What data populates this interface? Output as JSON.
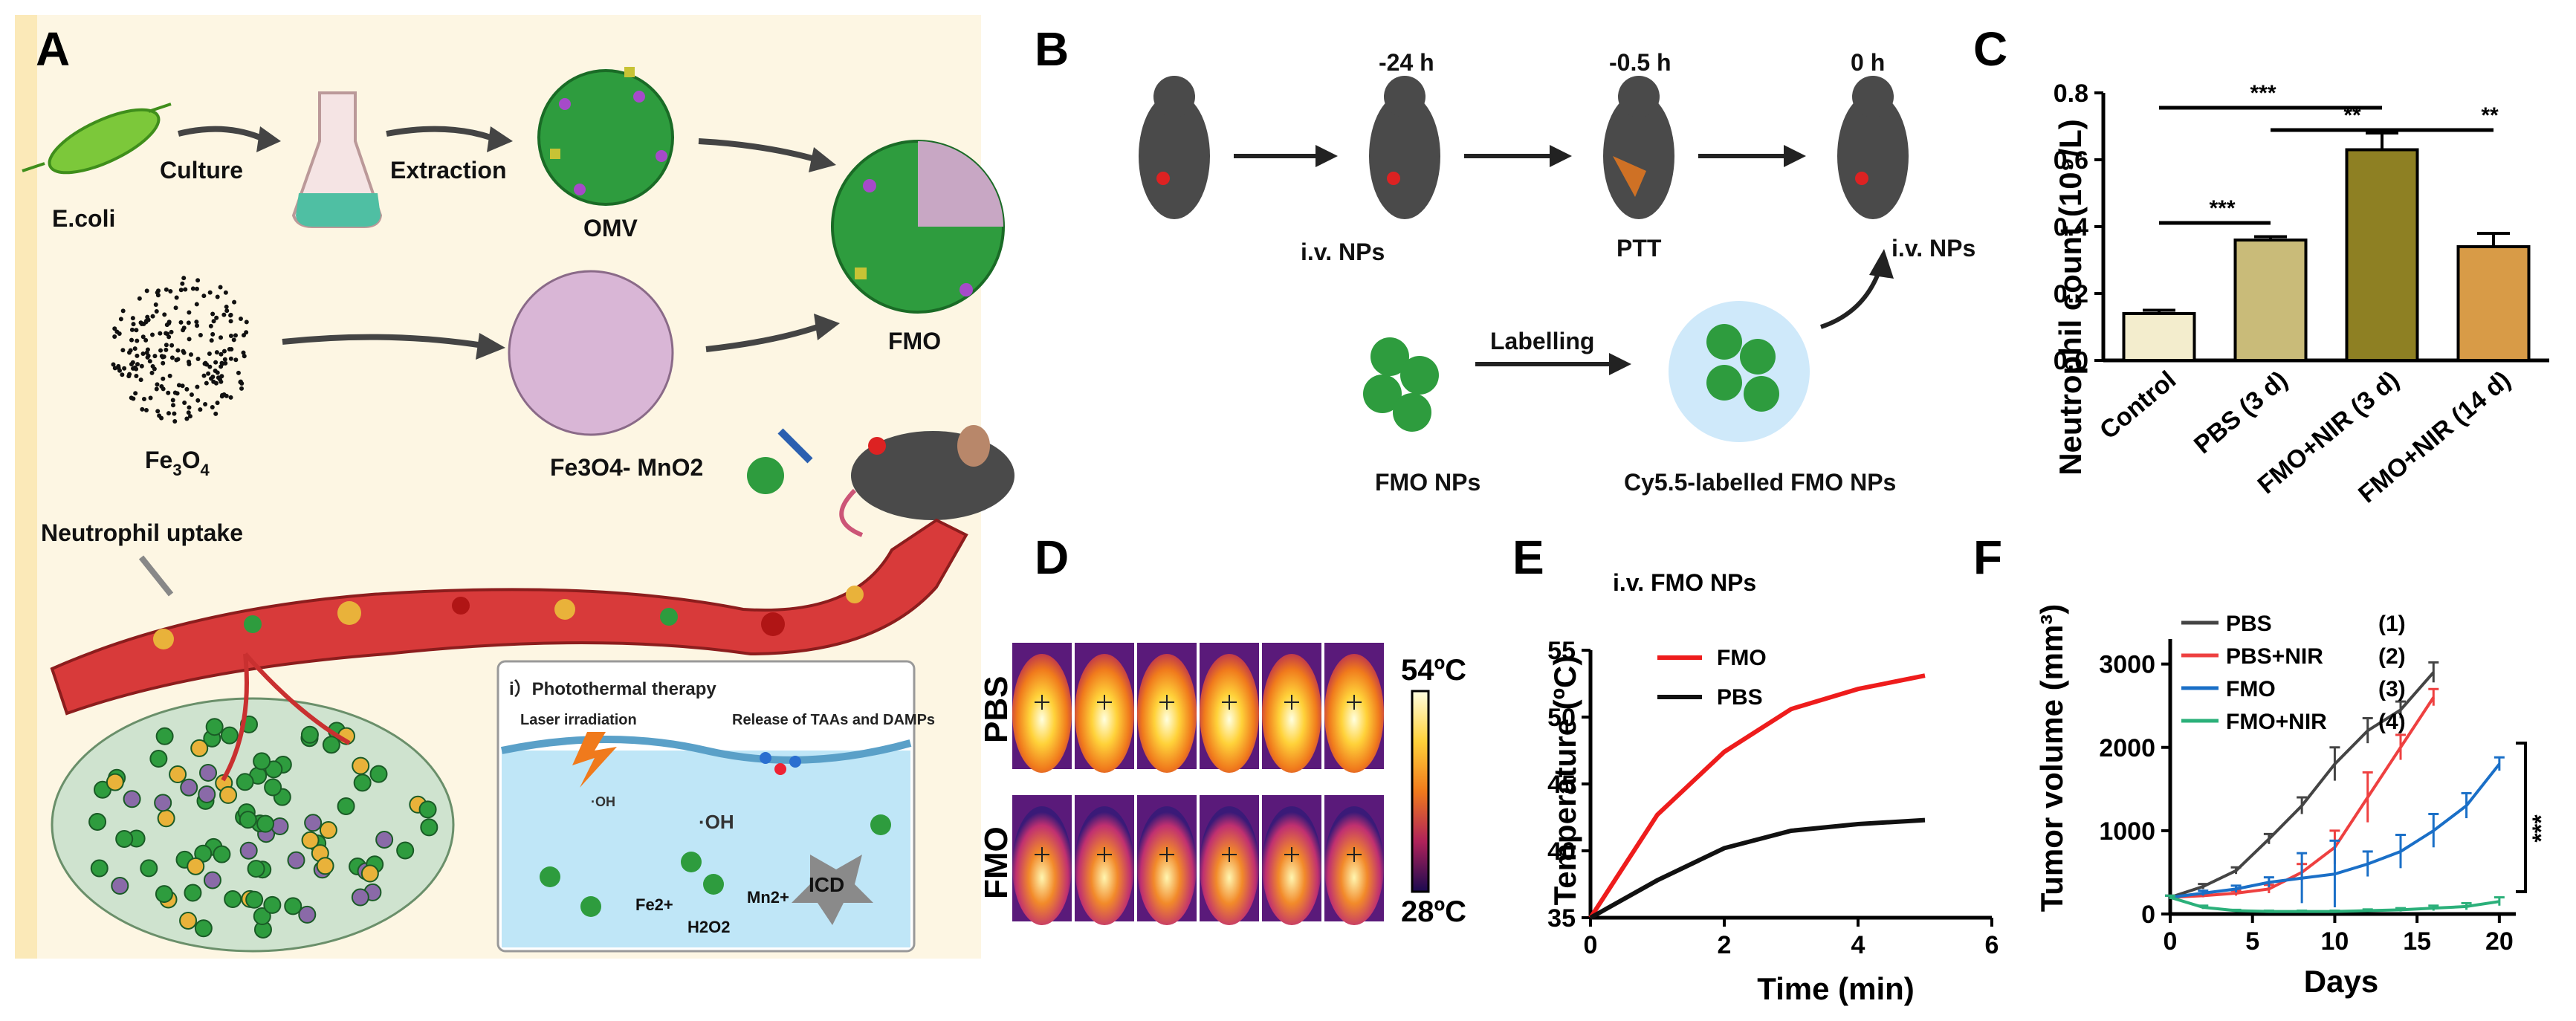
{
  "panels": {
    "A": "A",
    "B": "B",
    "C": "C",
    "D": "D",
    "E": "E",
    "F": "F"
  },
  "panelA": {
    "ecoli": "E.coli",
    "culture": "Culture",
    "extraction": "Extraction",
    "omv": "OMV",
    "fmo": "FMO",
    "fe3o4_base": "Fe",
    "fe3o4_sub": "3",
    "fe3o4_o": "O",
    "fe3o4_sub2": "4",
    "mno2": "Fe3O4- MnO2",
    "neutrophil_uptake": "Neutrophil uptake",
    "inset_title": "i）Photothermal therapy",
    "laser": "Laser irradiation",
    "release": "Release of  TAAs and DAMPs",
    "oh": "·OH",
    "fe2": "Fe2+",
    "mn2": "Mn2+",
    "h2o2": "H2O2",
    "icd": "ICD"
  },
  "panelB": {
    "t1": "-24 h",
    "t2": "-0.5 h",
    "t3": "0 h",
    "iv1": "i.v. NPs",
    "ptt": "PTT",
    "iv2": "i.v. NPs",
    "labelling": "Labelling",
    "fmo_nps": "FMO NPs",
    "cy55": "Cy5.5-labelled FMO NPs"
  },
  "panelD": {
    "row1": "PBS",
    "row2": "FMO",
    "max": "54ºC",
    "min": "28ºC"
  },
  "panelC": {
    "ylabel": "Neutrophil count (10⁹/L)",
    "sig1": "***",
    "sig2": "***",
    "sig3": "**",
    "sig4": "**"
  },
  "panelE": {
    "title": "i.v. FMO NPs",
    "legend_fmo": "FMO",
    "legend_pbs": "PBS"
  },
  "panelF": {
    "sig": "***"
  },
  "colors": {
    "fmo_red": "#ee1c1c",
    "pbs_black": "#111111",
    "vessel": "#d83a3a",
    "inset_bg": "#bfe6f7",
    "panel_bg": "#fdf6e3"
  },
  "chart_data": [
    {
      "id": "C",
      "type": "bar",
      "categories": [
        "Control",
        "PBS (3 d)",
        "FMO+NIR (3 d)",
        "FMO+NIR (14 d)"
      ],
      "values": [
        0.14,
        0.36,
        0.63,
        0.34
      ],
      "errors": [
        0.01,
        0.01,
        0.05,
        0.04
      ],
      "colors": [
        "#f3edcd",
        "#c9bb79",
        "#8e8023",
        "#d89b47"
      ],
      "ylabel": "Neutrophil count (10⁹/L)",
      "ylim": [
        0,
        0.8
      ],
      "yticks": [
        0.0,
        0.2,
        0.4,
        0.6,
        0.8
      ]
    },
    {
      "id": "E",
      "type": "line",
      "title": "i.v. FMO NPs",
      "xlabel": "Time (min)",
      "ylabel": "Temperature (ºC)",
      "xlim": [
        0,
        6
      ],
      "ylim": [
        35,
        55
      ],
      "xticks": [
        0,
        2,
        4,
        6
      ],
      "yticks": [
        35,
        40,
        45,
        50,
        55
      ],
      "series": [
        {
          "name": "FMO",
          "color": "#ee1c1c",
          "x": [
            0,
            1,
            2,
            3,
            4,
            5
          ],
          "y": [
            35,
            42.7,
            47.4,
            50.6,
            52.1,
            53.1
          ]
        },
        {
          "name": "PBS",
          "color": "#111111",
          "x": [
            0,
            1,
            2,
            3,
            4,
            5
          ],
          "y": [
            35,
            37.8,
            40.2,
            41.5,
            42,
            42.3
          ]
        }
      ],
      "legend": "top-left"
    },
    {
      "id": "F",
      "type": "line",
      "xlabel": "Days",
      "ylabel": "Tumor volume (mm³)",
      "xlim": [
        0,
        21
      ],
      "ylim": [
        0,
        3300
      ],
      "xticks": [
        0,
        5,
        10,
        15,
        20
      ],
      "yticks": [
        0,
        1000,
        2000,
        3000
      ],
      "series": [
        {
          "name": "PBS",
          "tag": "(1)",
          "color": "#444444",
          "x": [
            0,
            2,
            4,
            6,
            8,
            10,
            12,
            14,
            16
          ],
          "y": [
            200,
            330,
            520,
            900,
            1300,
            1800,
            2200,
            2450,
            2900
          ],
          "err": [
            20,
            30,
            40,
            60,
            100,
            200,
            150,
            100,
            120
          ]
        },
        {
          "name": "PBS+NIR",
          "tag": "(2)",
          "color": "#ee4040",
          "x": [
            0,
            2,
            4,
            6,
            8,
            10,
            12,
            14,
            16
          ],
          "y": [
            200,
            220,
            250,
            300,
            500,
            800,
            1400,
            2000,
            2600
          ],
          "err": [
            20,
            20,
            30,
            50,
            100,
            200,
            300,
            150,
            100
          ]
        },
        {
          "name": "FMO",
          "tag": "(3)",
          "color": "#1a6fc7",
          "x": [
            0,
            2,
            4,
            6,
            8,
            10,
            12,
            14,
            16,
            18,
            20
          ],
          "y": [
            200,
            250,
            300,
            380,
            430,
            480,
            600,
            750,
            1000,
            1300,
            1800
          ],
          "err": [
            20,
            30,
            40,
            60,
            300,
            400,
            150,
            200,
            200,
            150,
            80
          ]
        },
        {
          "name": "FMO+NIR",
          "tag": "(4)",
          "color": "#2bb07a",
          "x": [
            0,
            2,
            4,
            6,
            8,
            10,
            12,
            14,
            16,
            18,
            20
          ],
          "y": [
            200,
            80,
            40,
            30,
            30,
            30,
            40,
            50,
            70,
            90,
            150
          ],
          "err": [
            20,
            20,
            10,
            10,
            10,
            10,
            15,
            20,
            30,
            40,
            50
          ]
        }
      ],
      "legend": "top-left"
    }
  ]
}
